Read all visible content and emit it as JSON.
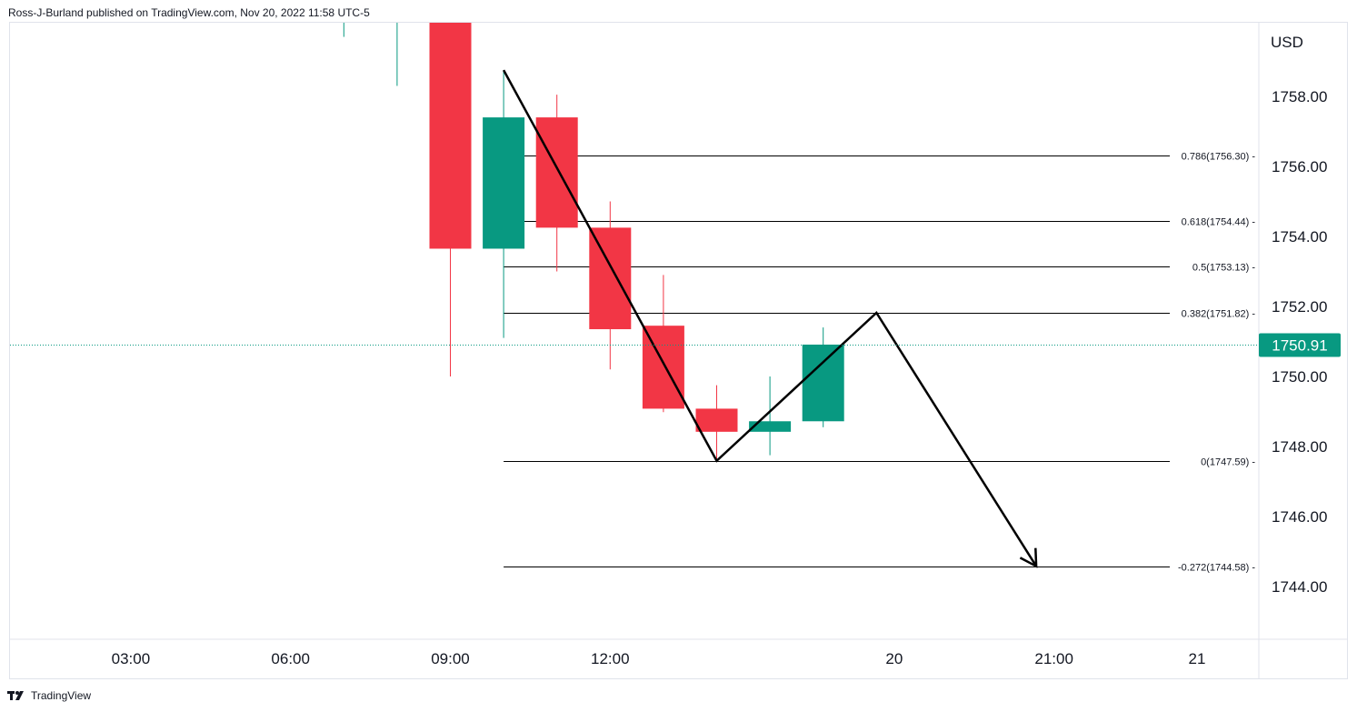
{
  "header": {
    "published_by": "Ross-J-Burland published on TradingView.com, Nov 20, 2022 11:58 UTC-5"
  },
  "footer": {
    "brand": "TradingView"
  },
  "colors": {
    "bull": "#089981",
    "bear": "#f23645",
    "line": "#000000",
    "price_tag": "#089981"
  },
  "chart_data": {
    "type": "candlestick",
    "currency": "USD",
    "y_ticks": [
      "1758.00",
      "1756.00",
      "1754.00",
      "1752.00",
      "1750.00",
      "1748.00",
      "1746.00",
      "1744.00"
    ],
    "x_ticks": [
      "03:00",
      "06:00",
      "09:00",
      "12:00",
      "20",
      "21:00",
      "21"
    ],
    "ylim": [
      1742.4,
      1761.0
    ],
    "current_price": "1750.91",
    "candles": [
      {
        "time": "07:00",
        "open": 1761.0,
        "high": 1761.0,
        "low": 1759.7,
        "close": 1761.0
      },
      {
        "time": "08:00",
        "open": 1761.0,
        "high": 1761.0,
        "low": 1758.3,
        "close": 1761.0
      },
      {
        "time": "09:00",
        "open": 1760.3,
        "high": 1760.3,
        "low": 1750.0,
        "close": 1753.65
      },
      {
        "time": "10:00",
        "open": 1753.65,
        "high": 1758.75,
        "low": 1751.1,
        "close": 1757.4
      },
      {
        "time": "11:00",
        "open": 1757.4,
        "high": 1758.05,
        "low": 1753.0,
        "close": 1754.25
      },
      {
        "time": "12:00",
        "open": 1754.25,
        "high": 1755.0,
        "low": 1750.2,
        "close": 1751.35
      },
      {
        "time": "13:00",
        "open": 1751.45,
        "high": 1752.9,
        "low": 1748.98,
        "close": 1749.08
      },
      {
        "time": "14:00",
        "open": 1749.08,
        "high": 1749.75,
        "low": 1747.59,
        "close": 1748.42
      },
      {
        "time": "15:00",
        "open": 1748.42,
        "high": 1750.0,
        "low": 1747.75,
        "close": 1748.72
      },
      {
        "time": "16:00",
        "open": 1748.72,
        "high": 1751.4,
        "low": 1748.55,
        "close": 1750.91
      }
    ],
    "fib_levels": [
      {
        "label": "0.786(1756.30)",
        "price": 1756.3
      },
      {
        "label": "0.618(1754.44)",
        "price": 1754.44
      },
      {
        "label": "0.5(1753.13)",
        "price": 1753.13
      },
      {
        "label": "0.382(1751.82)",
        "price": 1751.82
      },
      {
        "label": "0(1747.59)",
        "price": 1747.59
      },
      {
        "label": "-0.272(1744.58)",
        "price": 1744.58
      }
    ],
    "projection_path": [
      {
        "time": "10:00",
        "price": 1758.75
      },
      {
        "time": "14:00",
        "price": 1747.59
      },
      {
        "time": "17:00",
        "price": 1751.82
      },
      {
        "time": "20:00",
        "price": 1744.58
      }
    ]
  }
}
